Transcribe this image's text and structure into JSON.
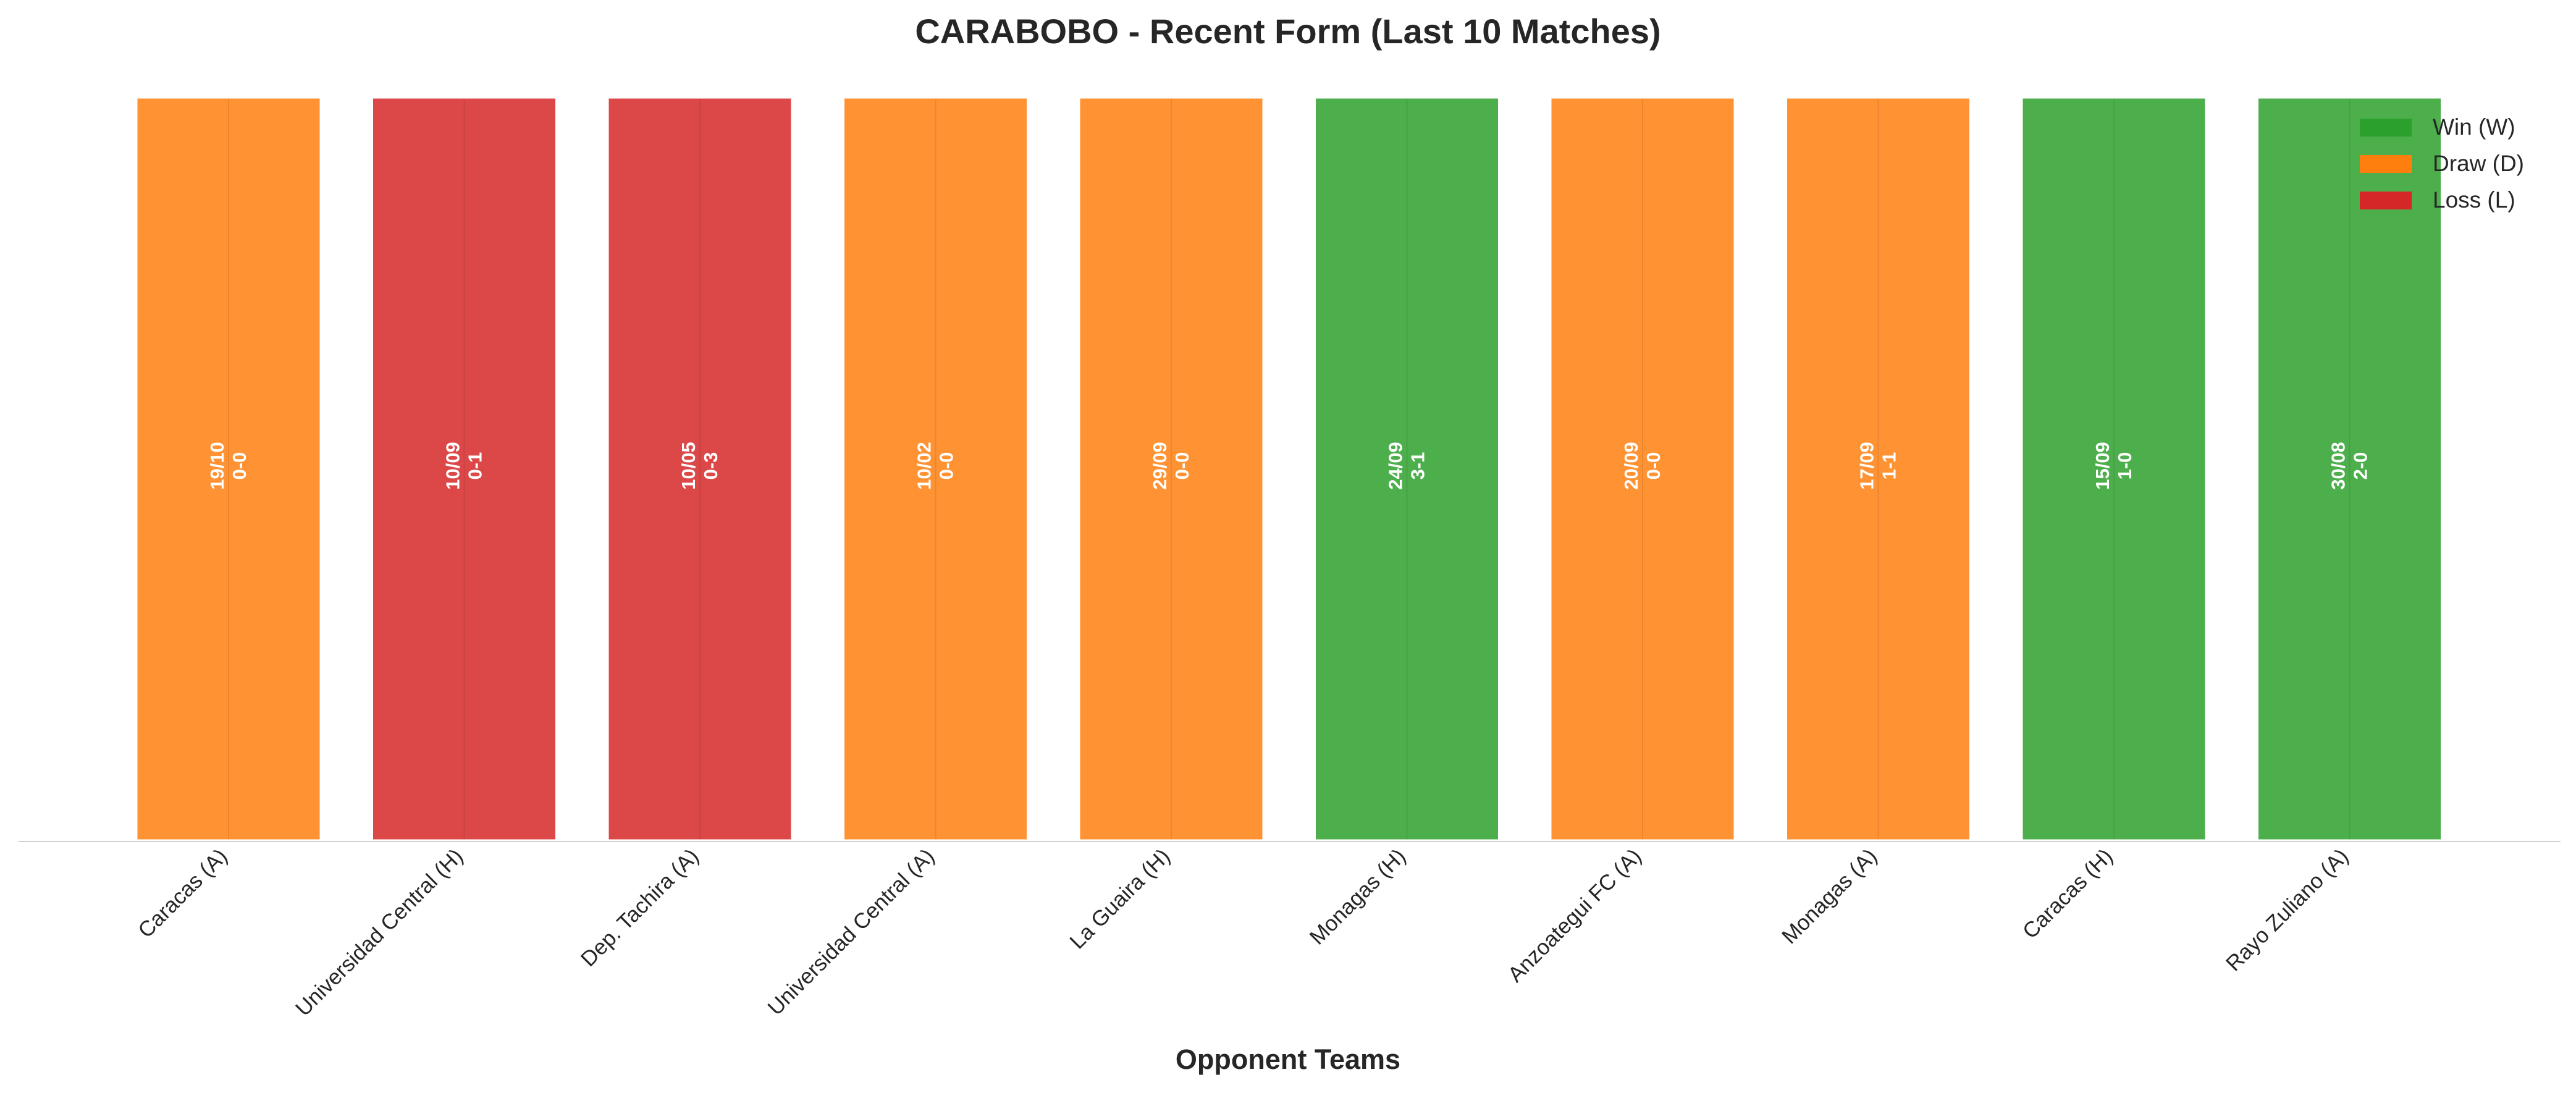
{
  "chart_data": {
    "type": "bar",
    "title": "CARABOBO - Recent Form (Last 10 Matches)",
    "xlabel": "Opponent Teams",
    "ylabel": "",
    "ylim": [
      0,
      1
    ],
    "grid": false,
    "legend_position": "top-right",
    "categories": [
      "Caracas (A)",
      "Universidad Central (H)",
      "Dep. Tachira (A)",
      "Universidad Central (A)",
      "La Guaira (H)",
      "Monagas (H)",
      "Anzoategui FC (A)",
      "Monagas (A)",
      "Caracas (H)",
      "Rayo Zuliano (A)"
    ],
    "values": [
      1,
      1,
      1,
      1,
      1,
      1,
      1,
      1,
      1,
      1
    ],
    "results": [
      "D",
      "L",
      "L",
      "D",
      "D",
      "W",
      "D",
      "D",
      "W",
      "W"
    ],
    "dates": [
      "19/10",
      "10/09",
      "10/05",
      "10/02",
      "29/09",
      "24/09",
      "20/09",
      "17/09",
      "15/09",
      "30/08"
    ],
    "scores": [
      "0-0",
      "0-1",
      "0-3",
      "0-0",
      "0-0",
      "3-1",
      "0-0",
      "1-1",
      "1-0",
      "2-0"
    ],
    "legend": [
      {
        "key": "W",
        "label": "Win (W)",
        "color": "#2ca02c"
      },
      {
        "key": "D",
        "label": "Draw (D)",
        "color": "#ff7f0e"
      },
      {
        "key": "L",
        "label": "Loss (L)",
        "color": "#d62728"
      }
    ],
    "colors": {
      "W": "#4caf4c",
      "D": "#ff9233",
      "L": "#dc4848"
    }
  }
}
